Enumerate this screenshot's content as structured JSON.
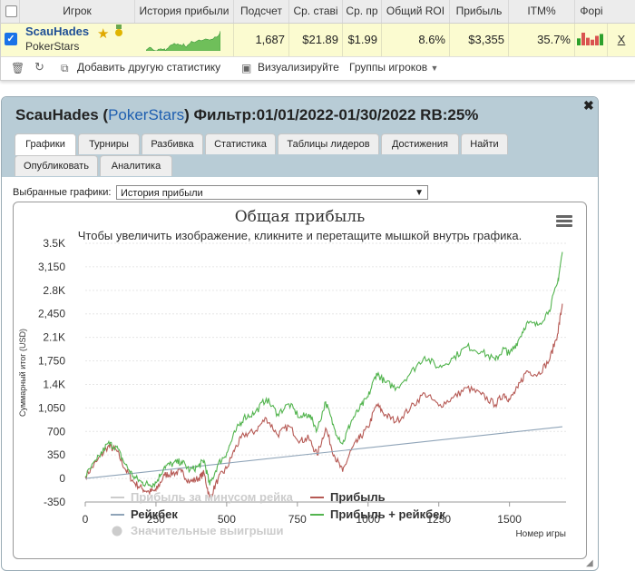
{
  "stats_table": {
    "headers": {
      "player": "Игрок",
      "history": "История прибыли",
      "count": "Подсчет",
      "avg_stake": "Ср. ставі",
      "avg_profit": "Ср. пр",
      "roi": "Общий ROI",
      "profit": "Прибыль",
      "itm": "ITM%",
      "form": "Форі"
    },
    "row": {
      "player_name": "ScauHades",
      "site": "PokerStars",
      "count": "1,687",
      "avg_stake": "$21.89",
      "avg_profit": "$1.99",
      "roi": "8.6%",
      "profit": "$3,355",
      "itm": "35.7%",
      "remove": "X"
    },
    "form_bars": [
      {
        "value": 0.55,
        "color": "#2ca02c"
      },
      {
        "value": 1.0,
        "color": "#d9534f"
      },
      {
        "value": 0.6,
        "color": "#d9534f"
      },
      {
        "value": 0.45,
        "color": "#d9534f"
      },
      {
        "value": 0.75,
        "color": "#d9534f"
      },
      {
        "value": 0.9,
        "color": "#2ca02c"
      }
    ]
  },
  "toolbar": {
    "add_stats": "Добавить другую статистику",
    "visualize": "Визуализируйте",
    "player_groups": "Группы игроков"
  },
  "popup": {
    "title_name": "ScauHades",
    "title_site": "PokerStars",
    "title_rest": "Фильтр:01/01/2022-01/30/2022 RB:25%",
    "tabs": [
      {
        "label": "Графики",
        "active": true
      },
      {
        "label": "Турниры",
        "active": false
      },
      {
        "label": "Разбивка",
        "active": false
      },
      {
        "label": "Статистика",
        "active": false
      },
      {
        "label": "Таблицы лидеров",
        "active": false
      },
      {
        "label": "Достижения",
        "active": false
      },
      {
        "label": "Найти",
        "active": false
      },
      {
        "label": "Опубликовать",
        "active": false
      },
      {
        "label": "Аналитика",
        "active": false
      }
    ],
    "select_label": "Выбранные графики:",
    "select_value": "История прибыли"
  },
  "colors": {
    "profit": "#b65a55",
    "profit_plus_rb": "#53b44f",
    "rakeback": "#8fa4b8",
    "accent": "#1f5fb0"
  },
  "chart_data": {
    "type": "line",
    "title": "Общая прибыль",
    "subtitle": "Чтобы увеличить изображение, кликните и перетащите мышкой внутрь графика.",
    "xlabel": "Номер игры",
    "ylabel": "Суммарный итог (USD)",
    "xlim": [
      0,
      1700
    ],
    "ylim": [
      -350,
      3500
    ],
    "x_ticks": [
      0,
      250,
      500,
      750,
      1000,
      1250,
      1500
    ],
    "y_ticks": [
      -350,
      0,
      350,
      700,
      1050,
      1400,
      1750,
      2100,
      2450,
      2800,
      3150,
      3500
    ],
    "y_tick_labels": [
      "-350",
      "0",
      "350",
      "700",
      "1,050",
      "1.4K",
      "1,750",
      "2.1K",
      "2,450",
      "2.8K",
      "3,150",
      "3.5K"
    ],
    "grid": true,
    "legend_position": "bottom",
    "legend": [
      {
        "label": "Прибыль за минусом рейка",
        "hidden": true
      },
      {
        "label": "Прибыль",
        "hidden": false
      },
      {
        "label": "Рейкбек",
        "hidden": false
      },
      {
        "label": "Прибыль + рейкбек",
        "hidden": false
      },
      {
        "label": "Значительные выигрыши",
        "hidden": true
      }
    ],
    "series": [
      {
        "name": "Прибыль",
        "x": [
          0,
          40,
          80,
          110,
          140,
          170,
          200,
          225,
          250,
          280,
          310,
          340,
          370,
          400,
          420,
          440,
          470,
          500,
          530,
          560,
          600,
          640,
          680,
          720,
          760,
          790,
          820,
          850,
          880,
          910,
          940,
          970,
          1000,
          1030,
          1060,
          1100,
          1150,
          1200,
          1250,
          1300,
          1350,
          1400,
          1450,
          1480,
          1500,
          1530,
          1560,
          1600,
          1640,
          1670,
          1687
        ],
        "y": [
          30,
          250,
          480,
          420,
          150,
          -50,
          -150,
          -200,
          -180,
          50,
          80,
          100,
          -50,
          0,
          80,
          -300,
          0,
          150,
          450,
          650,
          700,
          900,
          650,
          780,
          560,
          600,
          350,
          750,
          350,
          100,
          420,
          600,
          760,
          1100,
          950,
          850,
          1050,
          1270,
          1080,
          1200,
          1350,
          1250,
          1100,
          1260,
          1170,
          1350,
          1600,
          1550,
          1750,
          2150,
          2600
        ]
      },
      {
        "name": "Рейкбек",
        "x": [
          0,
          1687
        ],
        "y": [
          0,
          770
        ]
      },
      {
        "name": "Прибыль + рейкбек",
        "x": [
          0,
          40,
          80,
          110,
          140,
          170,
          200,
          225,
          250,
          280,
          310,
          340,
          370,
          400,
          420,
          440,
          470,
          500,
          530,
          560,
          600,
          640,
          680,
          720,
          760,
          790,
          820,
          850,
          880,
          910,
          940,
          970,
          1000,
          1030,
          1060,
          1100,
          1150,
          1200,
          1250,
          1300,
          1350,
          1400,
          1450,
          1480,
          1500,
          1530,
          1560,
          1600,
          1640,
          1670,
          1687
        ],
        "y": [
          30,
          270,
          520,
          470,
          220,
          30,
          -60,
          -90,
          -65,
          180,
          220,
          255,
          120,
          180,
          270,
          -100,
          215,
          380,
          690,
          905,
          975,
          1190,
          960,
          1110,
          905,
          960,
          725,
          1140,
          750,
          515,
          850,
          1040,
          1215,
          1570,
          1430,
          1350,
          1570,
          1815,
          1650,
          1790,
          1965,
          1890,
          1760,
          1935,
          1850,
          2045,
          2310,
          2280,
          2500,
          2910,
          3370
        ]
      }
    ]
  }
}
